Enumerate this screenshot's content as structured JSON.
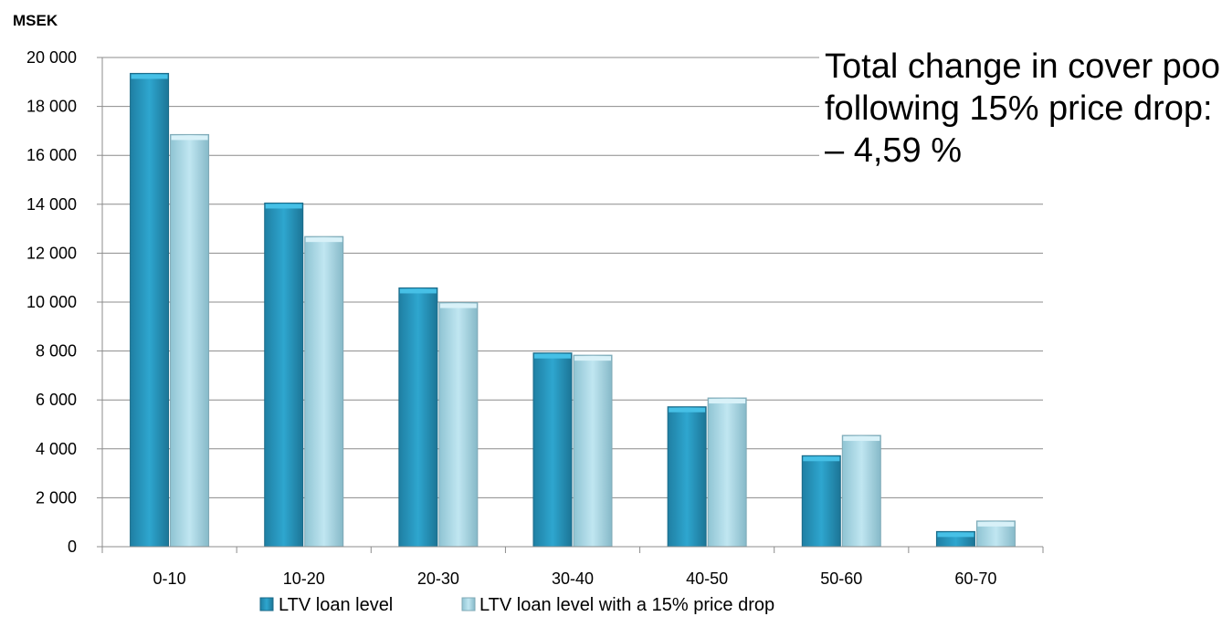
{
  "chart_data": {
    "type": "bar",
    "ylabel": "MSEK",
    "categories": [
      "0-10",
      "10-20",
      "20-30",
      "30-40",
      "40-50",
      "50-60",
      "60-70"
    ],
    "series": [
      {
        "name": "LTV loan level",
        "values": [
          19350,
          14050,
          10580,
          7920,
          5720,
          3720,
          620
        ],
        "color": "#2a9cc4"
      },
      {
        "name": "LTV loan level with a 15% price drop",
        "values": [
          16850,
          12680,
          9980,
          7830,
          6080,
          4550,
          1050
        ],
        "color": "#a9dcea"
      }
    ],
    "ylim": [
      0,
      20000
    ],
    "yticks": [
      0,
      2000,
      4000,
      6000,
      8000,
      10000,
      12000,
      14000,
      16000,
      18000,
      20000
    ],
    "ytick_labels": [
      "0",
      "2 000",
      "4 000",
      "6 000",
      "8 000",
      "10 000",
      "12 000",
      "14 000",
      "16 000",
      "18 000",
      "20 000"
    ],
    "grid": true,
    "legend": "bottom"
  },
  "annotation": {
    "lines": [
      "Total change in cover pool",
      "following 15% price drop:",
      "– 4,59 %"
    ]
  }
}
